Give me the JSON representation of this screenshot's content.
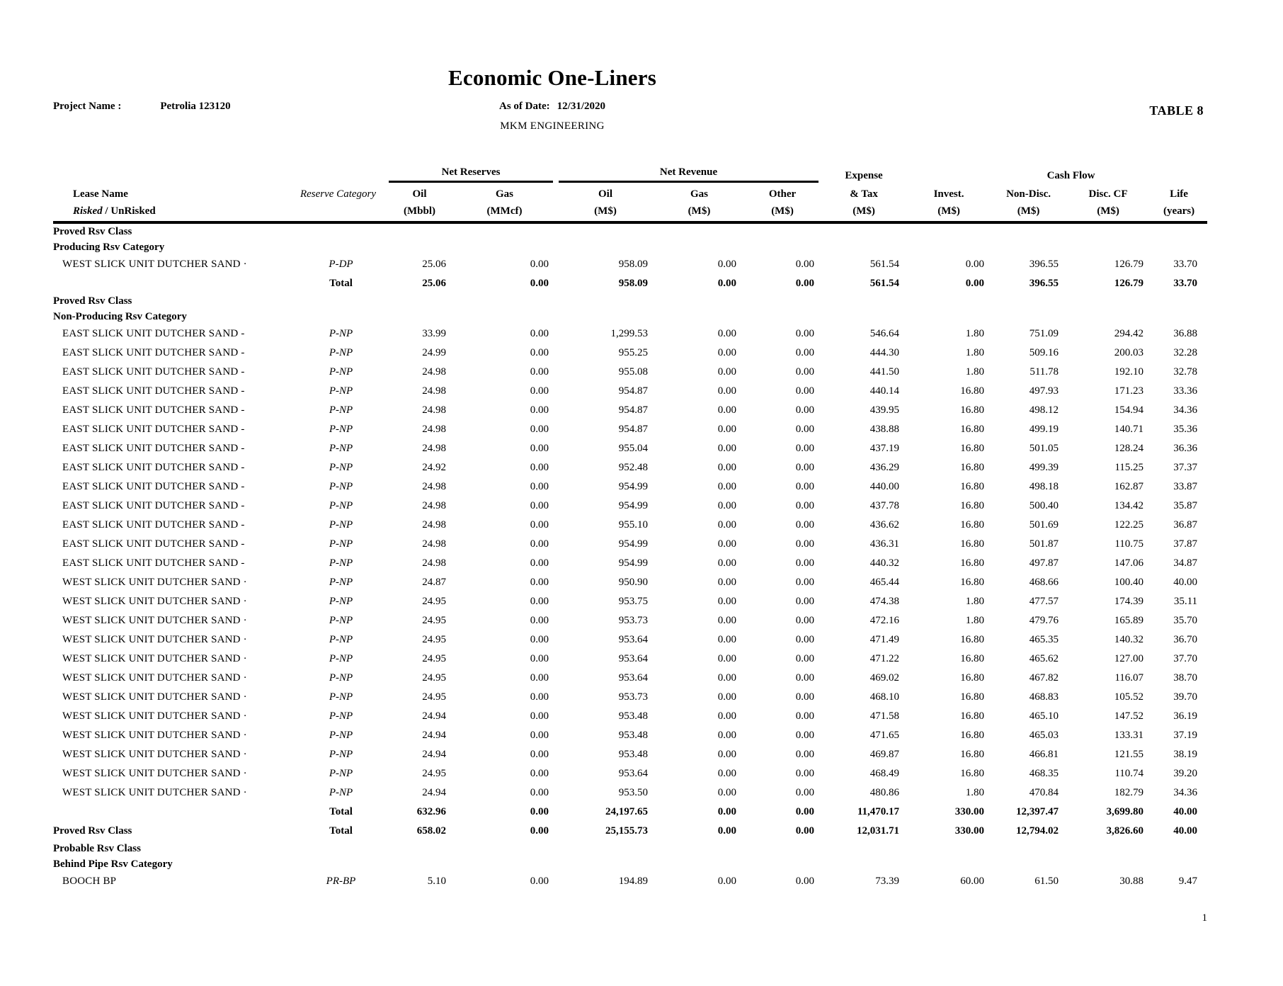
{
  "header": {
    "title": "Economic One-Liners",
    "project_label": "Project Name :",
    "project_value": "Petrolia 123120",
    "asof_label": "As of Date:",
    "asof_value": "12/31/2020",
    "company": "MKM ENGINEERING",
    "table_label": "TABLE 8"
  },
  "table": {
    "groups": {
      "net_reserves": "Net Reserves",
      "net_revenue": "Net Revenue",
      "expense_line1": "Expense",
      "cash_flow": "Cash Flow"
    },
    "cols": {
      "lease_line1": "Lease Name",
      "risked": "Risked",
      "unrisked": " / UnRisked",
      "reserve_category": "Reserve Category",
      "res_oil": "Oil",
      "res_gas": "Gas",
      "rev_oil": "Oil",
      "rev_gas": "Gas",
      "rev_other": "Other",
      "expense_line2": "& Tax",
      "invest": "Invest.",
      "nondisc": "Non-Disc.",
      "disccf": "Disc. CF",
      "life": "Life",
      "u_mbbl": "(Mbbl)",
      "u_mmcf": "(MMcf)",
      "u_ms": "(M$)",
      "u_years": "(years)"
    },
    "rows": [
      {
        "t": "class",
        "label": "Proved Rsv Class"
      },
      {
        "t": "cat",
        "label": "Producing Rsv Category"
      },
      {
        "t": "lease",
        "name": "WEST SLICK UNIT DUTCHER SAND ·",
        "cat": "P-DP",
        "v": [
          "25.06",
          "0.00",
          "958.09",
          "0.00",
          "0.00",
          "561.54",
          "0.00",
          "396.55",
          "126.79",
          "33.70"
        ]
      },
      {
        "t": "total",
        "total": "Total",
        "v": [
          "25.06",
          "0.00",
          "958.09",
          "0.00",
          "0.00",
          "561.54",
          "0.00",
          "396.55",
          "126.79",
          "33.70"
        ]
      },
      {
        "t": "class",
        "label": "Proved Rsv Class"
      },
      {
        "t": "cat",
        "label": "Non-Producing Rsv Category"
      },
      {
        "t": "lease",
        "name": "EAST SLICK UNIT DUTCHER SAND -",
        "cat": "P-NP",
        "v": [
          "33.99",
          "0.00",
          "1,299.53",
          "0.00",
          "0.00",
          "546.64",
          "1.80",
          "751.09",
          "294.42",
          "36.88"
        ]
      },
      {
        "t": "lease",
        "name": "EAST SLICK UNIT DUTCHER SAND -",
        "cat": "P-NP",
        "v": [
          "24.99",
          "0.00",
          "955.25",
          "0.00",
          "0.00",
          "444.30",
          "1.80",
          "509.16",
          "200.03",
          "32.28"
        ]
      },
      {
        "t": "lease",
        "name": "EAST SLICK UNIT DUTCHER SAND -",
        "cat": "P-NP",
        "v": [
          "24.98",
          "0.00",
          "955.08",
          "0.00",
          "0.00",
          "441.50",
          "1.80",
          "511.78",
          "192.10",
          "32.78"
        ]
      },
      {
        "t": "lease",
        "name": "EAST SLICK UNIT DUTCHER SAND -",
        "cat": "P-NP",
        "v": [
          "24.98",
          "0.00",
          "954.87",
          "0.00",
          "0.00",
          "440.14",
          "16.80",
          "497.93",
          "171.23",
          "33.36"
        ]
      },
      {
        "t": "lease",
        "name": "EAST SLICK UNIT DUTCHER SAND -",
        "cat": "P-NP",
        "v": [
          "24.98",
          "0.00",
          "954.87",
          "0.00",
          "0.00",
          "439.95",
          "16.80",
          "498.12",
          "154.94",
          "34.36"
        ]
      },
      {
        "t": "lease",
        "name": "EAST SLICK UNIT DUTCHER SAND -",
        "cat": "P-NP",
        "v": [
          "24.98",
          "0.00",
          "954.87",
          "0.00",
          "0.00",
          "438.88",
          "16.80",
          "499.19",
          "140.71",
          "35.36"
        ]
      },
      {
        "t": "lease",
        "name": "EAST SLICK UNIT DUTCHER SAND -",
        "cat": "P-NP",
        "v": [
          "24.98",
          "0.00",
          "955.04",
          "0.00",
          "0.00",
          "437.19",
          "16.80",
          "501.05",
          "128.24",
          "36.36"
        ]
      },
      {
        "t": "lease",
        "name": "EAST SLICK UNIT DUTCHER SAND -",
        "cat": "P-NP",
        "v": [
          "24.92",
          "0.00",
          "952.48",
          "0.00",
          "0.00",
          "436.29",
          "16.80",
          "499.39",
          "115.25",
          "37.37"
        ]
      },
      {
        "t": "lease",
        "name": "EAST SLICK UNIT DUTCHER SAND -",
        "cat": "P-NP",
        "v": [
          "24.98",
          "0.00",
          "954.99",
          "0.00",
          "0.00",
          "440.00",
          "16.80",
          "498.18",
          "162.87",
          "33.87"
        ]
      },
      {
        "t": "lease",
        "name": "EAST SLICK UNIT DUTCHER SAND -",
        "cat": "P-NP",
        "v": [
          "24.98",
          "0.00",
          "954.99",
          "0.00",
          "0.00",
          "437.78",
          "16.80",
          "500.40",
          "134.42",
          "35.87"
        ]
      },
      {
        "t": "lease",
        "name": "EAST SLICK UNIT DUTCHER SAND -",
        "cat": "P-NP",
        "v": [
          "24.98",
          "0.00",
          "955.10",
          "0.00",
          "0.00",
          "436.62",
          "16.80",
          "501.69",
          "122.25",
          "36.87"
        ]
      },
      {
        "t": "lease",
        "name": "EAST SLICK UNIT DUTCHER SAND -",
        "cat": "P-NP",
        "v": [
          "24.98",
          "0.00",
          "954.99",
          "0.00",
          "0.00",
          "436.31",
          "16.80",
          "501.87",
          "110.75",
          "37.87"
        ]
      },
      {
        "t": "lease",
        "name": "EAST SLICK UNIT DUTCHER SAND -",
        "cat": "P-NP",
        "v": [
          "24.98",
          "0.00",
          "954.99",
          "0.00",
          "0.00",
          "440.32",
          "16.80",
          "497.87",
          "147.06",
          "34.87"
        ]
      },
      {
        "t": "lease",
        "name": "WEST SLICK UNIT DUTCHER SAND ·",
        "cat": "P-NP",
        "v": [
          "24.87",
          "0.00",
          "950.90",
          "0.00",
          "0.00",
          "465.44",
          "16.80",
          "468.66",
          "100.40",
          "40.00"
        ]
      },
      {
        "t": "lease",
        "name": "WEST SLICK UNIT DUTCHER SAND ·",
        "cat": "P-NP",
        "v": [
          "24.95",
          "0.00",
          "953.75",
          "0.00",
          "0.00",
          "474.38",
          "1.80",
          "477.57",
          "174.39",
          "35.11"
        ]
      },
      {
        "t": "lease",
        "name": "WEST SLICK UNIT DUTCHER SAND ·",
        "cat": "P-NP",
        "v": [
          "24.95",
          "0.00",
          "953.73",
          "0.00",
          "0.00",
          "472.16",
          "1.80",
          "479.76",
          "165.89",
          "35.70"
        ]
      },
      {
        "t": "lease",
        "name": "WEST SLICK UNIT DUTCHER SAND ·",
        "cat": "P-NP",
        "v": [
          "24.95",
          "0.00",
          "953.64",
          "0.00",
          "0.00",
          "471.49",
          "16.80",
          "465.35",
          "140.32",
          "36.70"
        ]
      },
      {
        "t": "lease",
        "name": "WEST SLICK UNIT DUTCHER SAND ·",
        "cat": "P-NP",
        "v": [
          "24.95",
          "0.00",
          "953.64",
          "0.00",
          "0.00",
          "471.22",
          "16.80",
          "465.62",
          "127.00",
          "37.70"
        ]
      },
      {
        "t": "lease",
        "name": "WEST SLICK UNIT DUTCHER SAND ·",
        "cat": "P-NP",
        "v": [
          "24.95",
          "0.00",
          "953.64",
          "0.00",
          "0.00",
          "469.02",
          "16.80",
          "467.82",
          "116.07",
          "38.70"
        ]
      },
      {
        "t": "lease",
        "name": "WEST SLICK UNIT DUTCHER SAND ·",
        "cat": "P-NP",
        "v": [
          "24.95",
          "0.00",
          "953.73",
          "0.00",
          "0.00",
          "468.10",
          "16.80",
          "468.83",
          "105.52",
          "39.70"
        ]
      },
      {
        "t": "lease",
        "name": "WEST SLICK UNIT DUTCHER SAND ·",
        "cat": "P-NP",
        "v": [
          "24.94",
          "0.00",
          "953.48",
          "0.00",
          "0.00",
          "471.58",
          "16.80",
          "465.10",
          "147.52",
          "36.19"
        ]
      },
      {
        "t": "lease",
        "name": "WEST SLICK UNIT DUTCHER SAND ·",
        "cat": "P-NP",
        "v": [
          "24.94",
          "0.00",
          "953.48",
          "0.00",
          "0.00",
          "471.65",
          "16.80",
          "465.03",
          "133.31",
          "37.19"
        ]
      },
      {
        "t": "lease",
        "name": "WEST SLICK UNIT DUTCHER SAND ·",
        "cat": "P-NP",
        "v": [
          "24.94",
          "0.00",
          "953.48",
          "0.00",
          "0.00",
          "469.87",
          "16.80",
          "466.81",
          "121.55",
          "38.19"
        ]
      },
      {
        "t": "lease",
        "name": "WEST SLICK UNIT DUTCHER SAND ·",
        "cat": "P-NP",
        "v": [
          "24.95",
          "0.00",
          "953.64",
          "0.00",
          "0.00",
          "468.49",
          "16.80",
          "468.35",
          "110.74",
          "39.20"
        ]
      },
      {
        "t": "lease",
        "name": "WEST SLICK UNIT DUTCHER SAND ·",
        "cat": "P-NP",
        "v": [
          "24.94",
          "0.00",
          "953.50",
          "0.00",
          "0.00",
          "480.86",
          "1.80",
          "470.84",
          "182.79",
          "34.36"
        ]
      },
      {
        "t": "total",
        "total": "Total",
        "v": [
          "632.96",
          "0.00",
          "24,197.65",
          "0.00",
          "0.00",
          "11,470.17",
          "330.00",
          "12,397.47",
          "3,699.80",
          "40.00"
        ]
      },
      {
        "t": "ctotal",
        "class_label": "Proved Rsv Class",
        "total": "Total",
        "v": [
          "658.02",
          "0.00",
          "25,155.73",
          "0.00",
          "0.00",
          "12,031.71",
          "330.00",
          "12,794.02",
          "3,826.60",
          "40.00"
        ]
      },
      {
        "t": "class",
        "label": "Probable Rsv Class"
      },
      {
        "t": "cat",
        "label": "Behind Pipe Rsv Category"
      },
      {
        "t": "lease",
        "name": "BOOCH BP",
        "cat": "PR-BP",
        "v": [
          "5.10",
          "0.00",
          "194.89",
          "0.00",
          "0.00",
          "73.39",
          "60.00",
          "61.50",
          "30.88",
          "9.47"
        ]
      }
    ]
  },
  "footer": {
    "page_number": "1"
  }
}
